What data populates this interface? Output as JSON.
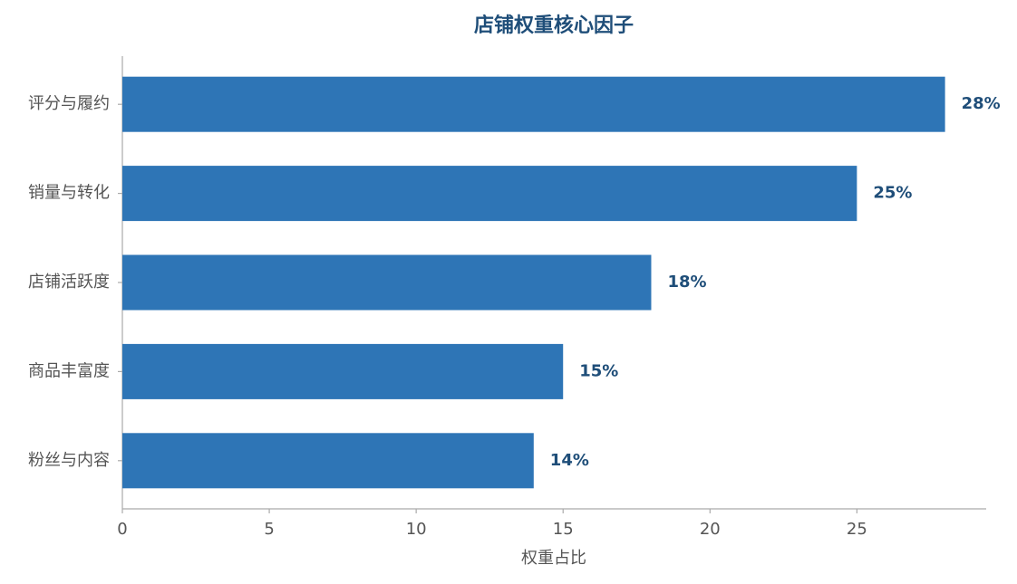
{
  "chart_data": {
    "type": "barh",
    "title": "店铺权重核心因子",
    "categories": [
      "评分与履约",
      "销量与转化",
      "店铺活跃度",
      "商品丰富度",
      "粉丝与内容"
    ],
    "values": [
      28,
      25,
      18,
      15,
      14
    ],
    "value_labels": [
      "28%",
      "25%",
      "18%",
      "15%",
      "14%"
    ],
    "color": "#2e75b6",
    "xlabel": "权重占比",
    "xlim": [
      0,
      29.4
    ],
    "xticks": [
      0,
      5,
      10,
      15,
      20,
      25
    ],
    "grid": false
  }
}
